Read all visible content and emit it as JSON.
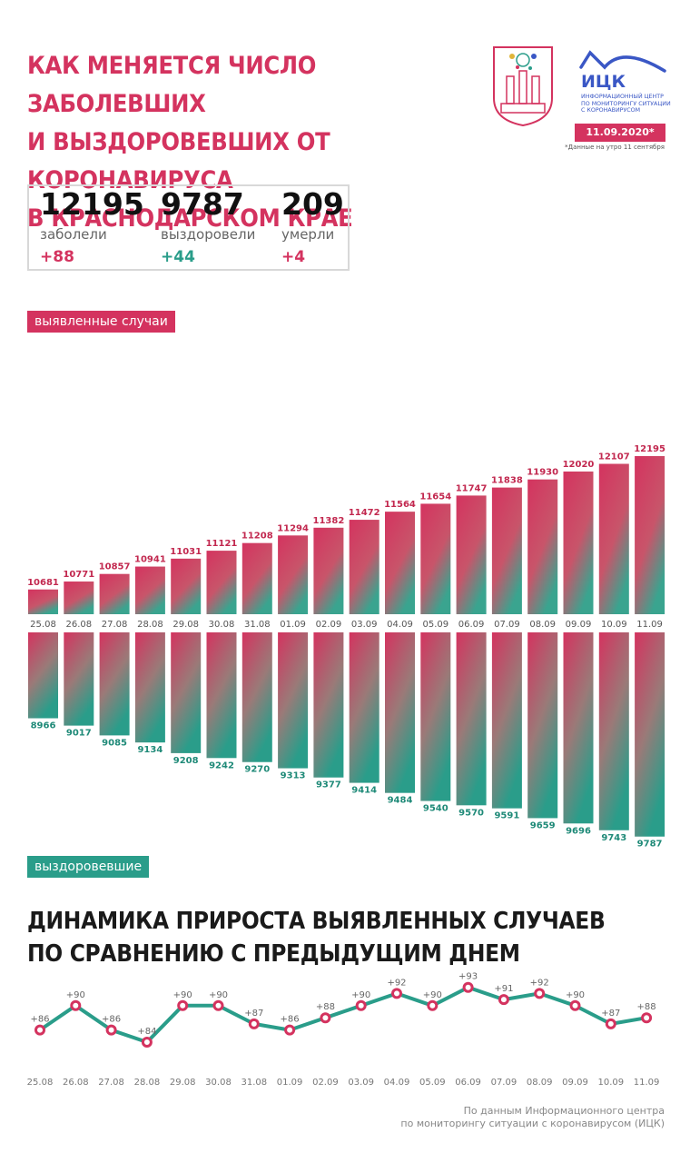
{
  "header": {
    "title_lines": [
      "КАК МЕНЯЕТСЯ ЧИСЛО ЗАБОЛЕВШИХ",
      "И ВЫЗДОРОВЕВШИХ ОТ КОРОНАВИРУСА",
      "В КРАСНОДАРСКОМ КРАЕ"
    ],
    "logo_text": "ИЦК",
    "logo_subtitle": [
      "ИНФОРМАЦИОННЫЙ ЦЕНТР",
      "ПО МОНИТОРИНГУ СИТУАЦИИ",
      "С КОРОНАВИРУСОМ"
    ],
    "date": "11.09.2020*",
    "date_note": "*Данные на утро 11 сентября"
  },
  "stats": [
    {
      "value": "12195",
      "label": "заболели",
      "delta": "+88"
    },
    {
      "value": "9787",
      "label": "выздоровели",
      "delta": "+44"
    },
    {
      "value": "209",
      "label": "умерли",
      "delta": "+4"
    }
  ],
  "colors": {
    "accent": "#d4335f",
    "recovered": "#2a9d8a",
    "text": "#1a1a1a"
  },
  "labels": {
    "cases": "выявленные случаи",
    "recovered": "выздоровевшие"
  },
  "subtitle_lines": [
    "ДИНАМИКА ПРИРОСТА ВЫЯВЛЕННЫХ СЛУЧАЕВ",
    "ПО СРАВНЕНИЮ С ПРЕДЫДУЩИМ ДНЕМ"
  ],
  "source_lines": [
    "По данным Информационного центра",
    "по мониторингу ситуации с коронавирусом (ИЦК)"
  ],
  "chart_data": [
    {
      "type": "bar",
      "categories": [
        "25.08",
        "26.08",
        "27.08",
        "28.08",
        "29.08",
        "30.08",
        "31.08",
        "01.09",
        "02.09",
        "03.09",
        "04.09",
        "05.09",
        "06.09",
        "07.09",
        "08.09",
        "09.09",
        "10.09",
        "11.09"
      ],
      "series": [
        {
          "name": "выявленные случаи",
          "values": [
            10681,
            10771,
            10857,
            10941,
            11031,
            11121,
            11208,
            11294,
            11382,
            11472,
            11564,
            11654,
            11747,
            11838,
            11930,
            12020,
            12107,
            12195
          ]
        },
        {
          "name": "выздоровевшие",
          "values": [
            8966,
            9017,
            9085,
            9134,
            9208,
            9242,
            9270,
            9313,
            9377,
            9414,
            9484,
            9540,
            9570,
            9591,
            9659,
            9696,
            9743,
            9787
          ]
        }
      ]
    },
    {
      "type": "line",
      "title": "ДИНАМИКА ПРИРОСТА ВЫЯВЛЕННЫХ СЛУЧАЕВ ПО СРАВНЕНИЮ С ПРЕДЫДУЩИМ ДНЕМ",
      "x": [
        "25.08",
        "26.08",
        "27.08",
        "28.08",
        "29.08",
        "30.08",
        "31.08",
        "01.09",
        "02.09",
        "03.09",
        "04.09",
        "05.09",
        "06.09",
        "07.09",
        "08.09",
        "09.09",
        "10.09",
        "11.09"
      ],
      "y": [
        86,
        90,
        86,
        84,
        90,
        90,
        87,
        86,
        88,
        90,
        92,
        90,
        93,
        91,
        92,
        90,
        87,
        88
      ],
      "labels": [
        "+86",
        "+90",
        "+86",
        "+84",
        "+90",
        "+90",
        "+87",
        "+86",
        "+88",
        "+90",
        "+92",
        "+90",
        "+93",
        "+91",
        "+92",
        "+90",
        "+87",
        "+88"
      ]
    }
  ]
}
